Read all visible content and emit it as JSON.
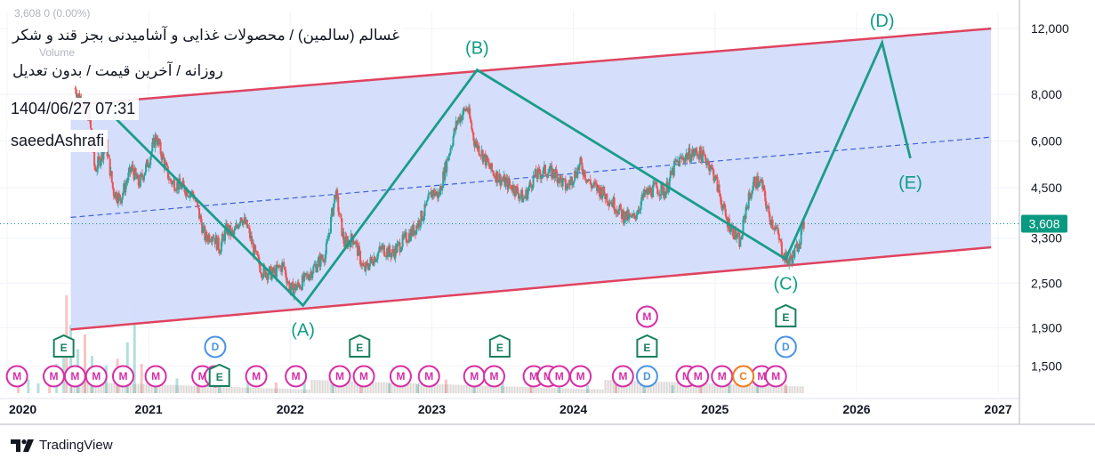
{
  "header": {
    "title": "غسالم (سالمین) / محصولات غذایی و آشامیدنی بجز قند و شکر",
    "subtitle": "روزانه / آخرین قیمت / بدون تعدیل",
    "date": "1404/06/27 07:31",
    "author": "saeedAshrafi",
    "ghost": "3,608  0 (0.00%)",
    "volume_label": "Volume"
  },
  "branding": {
    "logo_text": "TradingView"
  },
  "price_badge": {
    "value": "3,608",
    "color": "#089981"
  },
  "colors": {
    "channel_fill": "#d3dcfb",
    "channel_line": "#e0435f",
    "midline": "#3d62d9",
    "wave": "#1a9c89",
    "up": "#26a69a",
    "down": "#ef5350",
    "badge_m": "#d62fa6",
    "badge_e": "#18815f",
    "badge_d": "#4a94e6",
    "badge_c": "#f07c1e"
  },
  "chart_data": {
    "type": "line",
    "scale": "log",
    "title": "غسالم (سالمین) / محصولات غذایی و آشامیدنی بجز قند و شکر",
    "xlabel": "",
    "ylabel": "",
    "xlim": [
      2019.95,
      2027.15
    ],
    "ylim": [
      1270,
      13400
    ],
    "x_ticks": [
      {
        "label": "2020",
        "x": 2020.0
      },
      {
        "label": "2021",
        "x": 2021.0
      },
      {
        "label": "2022",
        "x": 2022.0
      },
      {
        "label": "2023",
        "x": 2023.0
      },
      {
        "label": "2024",
        "x": 2024.0
      },
      {
        "label": "2025",
        "x": 2025.0
      },
      {
        "label": "2026",
        "x": 2026.0
      },
      {
        "label": "2027",
        "x": 2027.0
      }
    ],
    "y_ticks": [
      {
        "label": "12,000",
        "value": 12000
      },
      {
        "label": "8,000",
        "value": 8000
      },
      {
        "label": "6,000",
        "value": 6000
      },
      {
        "label": "4,500",
        "value": 4500
      },
      {
        "label": "3,300",
        "value": 3300
      },
      {
        "label": "2,500",
        "value": 2500
      },
      {
        "label": "1,900",
        "value": 1900
      },
      {
        "label": "1,500",
        "value": 1500
      }
    ],
    "last_price": 3608,
    "channel": {
      "start_x": 2020.45,
      "end_x": 2026.95,
      "upper": [
        7500,
        12000
      ],
      "lower": [
        1880,
        3120
      ],
      "mid": [
        3750,
        6150
      ]
    },
    "price_series": {
      "name": "Close",
      "x": [
        2020.48,
        2020.58,
        2020.62,
        2020.7,
        2020.75,
        2020.8,
        2020.88,
        2020.93,
        2021.0,
        2021.05,
        2021.15,
        2021.25,
        2021.32,
        2021.4,
        2021.45,
        2021.5,
        2021.55,
        2021.6,
        2021.65,
        2021.7,
        2021.75,
        2021.8,
        2021.88,
        2021.95,
        2022.0,
        2022.05,
        2022.1,
        2022.15,
        2022.25,
        2022.32,
        2022.38,
        2022.45,
        2022.52,
        2022.58,
        2022.65,
        2022.72,
        2022.8,
        2022.88,
        2022.95,
        2023.0,
        2023.05,
        2023.1,
        2023.18,
        2023.25,
        2023.3,
        2023.35,
        2023.42,
        2023.5,
        2023.58,
        2023.65,
        2023.72,
        2023.8,
        2023.88,
        2023.95,
        2024.05,
        2024.12,
        2024.2,
        2024.28,
        2024.35,
        2024.42,
        2024.5,
        2024.58,
        2024.65,
        2024.72,
        2024.8,
        2024.88,
        2024.95,
        2025.0,
        2025.08,
        2025.12,
        2025.18,
        2025.22,
        2025.28,
        2025.33,
        2025.38,
        2025.43,
        2025.48,
        2025.52,
        2025.56,
        2025.6,
        2025.63
      ],
      "y": [
        8300,
        7000,
        5000,
        5900,
        4400,
        4200,
        5100,
        4600,
        5300,
        6200,
        4700,
        4500,
        4300,
        3300,
        3400,
        3100,
        3500,
        3350,
        3800,
        3500,
        3000,
        2700,
        2650,
        2800,
        2400,
        2450,
        2550,
        2700,
        3000,
        4400,
        3200,
        3300,
        2700,
        2900,
        3100,
        3000,
        3250,
        3500,
        3900,
        4400,
        4300,
        5200,
        6800,
        7400,
        6000,
        5600,
        5000,
        4700,
        4500,
        4200,
        4800,
        5000,
        4900,
        4500,
        5200,
        4600,
        4400,
        4100,
        3800,
        3700,
        4300,
        4500,
        4400,
        5200,
        5500,
        5600,
        5300,
        4800,
        3700,
        3500,
        3200,
        4000,
        4700,
        4600,
        3800,
        3500,
        3000,
        2850,
        3000,
        3300,
        3608
      ]
    },
    "wave_path": {
      "name": "Elliott wave projection",
      "x": [
        2020.75,
        2022.09,
        2023.32,
        2025.5,
        2026.18,
        2026.38
      ],
      "y": [
        7000,
        2180,
        9300,
        2900,
        11000,
        5400
      ]
    },
    "wave_labels": [
      {
        "text": "(A)",
        "x": 2022.09,
        "y": 2180,
        "pos": "below"
      },
      {
        "text": "(B)",
        "x": 2023.32,
        "y": 9300,
        "pos": "above"
      },
      {
        "text": "(C)",
        "x": 2025.5,
        "y": 2900,
        "pos": "below"
      },
      {
        "text": "(D)",
        "x": 2026.18,
        "y": 11000,
        "pos": "above"
      },
      {
        "text": "(E)",
        "x": 2026.38,
        "y": 5400,
        "pos": "below"
      }
    ],
    "volume": {
      "x": [
        2020.08,
        2020.15,
        2020.22,
        2020.3,
        2020.35,
        2020.4,
        2020.42,
        2020.45,
        2020.5,
        2020.55,
        2020.6,
        2020.7,
        2020.78,
        2020.85,
        2020.9,
        2020.95,
        2021.05,
        2021.2,
        2021.35,
        2021.5,
        2021.7,
        2021.9,
        2022.1,
        2022.3,
        2022.5,
        2022.7,
        2022.9,
        2023.1,
        2023.3,
        2023.5,
        2023.7,
        2023.9,
        2024.1,
        2024.3,
        2024.5,
        2024.7,
        2024.9,
        2025.1,
        2025.3,
        2025.5
      ],
      "values": [
        8,
        14,
        10,
        22,
        30,
        55,
        100,
        70,
        45,
        60,
        38,
        28,
        35,
        52,
        90,
        30,
        20,
        15,
        12,
        10,
        14,
        11,
        13,
        16,
        12,
        10,
        9,
        14,
        18,
        12,
        9,
        10,
        8,
        9,
        11,
        8,
        10,
        9,
        8,
        9
      ]
    },
    "events": [
      {
        "type": "M",
        "x": 2020.07,
        "row": 0
      },
      {
        "type": "M",
        "x": 2020.33,
        "row": 0
      },
      {
        "type": "M",
        "x": 2020.48,
        "row": 0
      },
      {
        "type": "M",
        "x": 2020.63,
        "row": 0
      },
      {
        "type": "M",
        "x": 2020.82,
        "row": 0
      },
      {
        "type": "M",
        "x": 2021.05,
        "row": 0
      },
      {
        "type": "M",
        "x": 2021.38,
        "row": 0
      },
      {
        "type": "M",
        "x": 2021.47,
        "row": 0
      },
      {
        "type": "M",
        "x": 2021.76,
        "row": 0
      },
      {
        "type": "M",
        "x": 2022.04,
        "row": 0
      },
      {
        "type": "M",
        "x": 2022.35,
        "row": 0
      },
      {
        "type": "M",
        "x": 2022.52,
        "row": 0
      },
      {
        "type": "M",
        "x": 2022.78,
        "row": 0
      },
      {
        "type": "M",
        "x": 2022.98,
        "row": 0
      },
      {
        "type": "M",
        "x": 2023.3,
        "row": 0
      },
      {
        "type": "M",
        "x": 2023.44,
        "row": 0
      },
      {
        "type": "M",
        "x": 2023.72,
        "row": 0
      },
      {
        "type": "M",
        "x": 2023.82,
        "row": 0
      },
      {
        "type": "M",
        "x": 2023.9,
        "row": 0
      },
      {
        "type": "M",
        "x": 2024.05,
        "row": 0
      },
      {
        "type": "M",
        "x": 2024.35,
        "row": 0
      },
      {
        "type": "M",
        "x": 2024.8,
        "row": 0
      },
      {
        "type": "M",
        "x": 2024.88,
        "row": 0
      },
      {
        "type": "M",
        "x": 2025.05,
        "row": 0
      },
      {
        "type": "M",
        "x": 2025.33,
        "row": 0
      },
      {
        "type": "M",
        "x": 2025.43,
        "row": 0
      },
      {
        "type": "D",
        "x": 2021.47,
        "row": 1
      },
      {
        "type": "D",
        "x": 2024.52,
        "row": 0
      },
      {
        "type": "D",
        "x": 2025.5,
        "row": 1
      },
      {
        "type": "C",
        "x": 2025.2,
        "row": 0
      },
      {
        "type": "E",
        "x": 2020.4,
        "row": 1
      },
      {
        "type": "E",
        "x": 2021.5,
        "row": 0
      },
      {
        "type": "E",
        "x": 2022.49,
        "row": 1
      },
      {
        "type": "E",
        "x": 2023.48,
        "row": 1
      },
      {
        "type": "E",
        "x": 2024.52,
        "row": 1
      },
      {
        "type": "E",
        "x": 2025.5,
        "row": 2
      },
      {
        "type": "M",
        "x": 2024.52,
        "row": 2
      }
    ]
  }
}
